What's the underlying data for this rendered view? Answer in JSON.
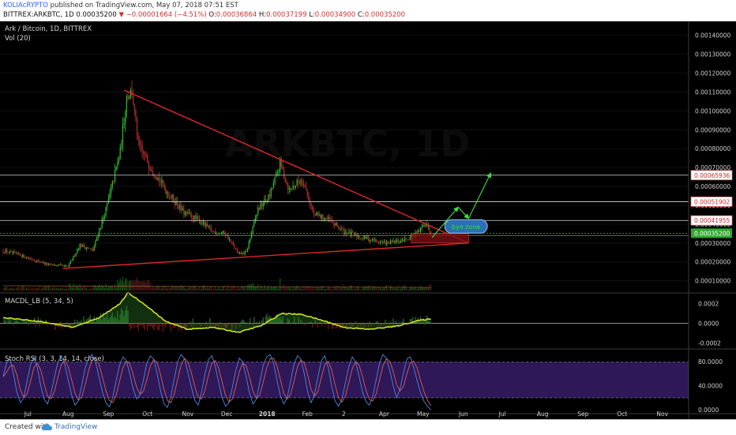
{
  "header": {
    "author": "KOLIAcRYPTO",
    "published": "published on TradingView.com, May 07, 2018 07:51 EST",
    "symbol": "BITTREX:ARKBTC, 1D",
    "price": "0.00035200",
    "change": "−0.00001664 (−4.51%)",
    "ohlc": [
      {
        "label": "O:",
        "value": "0.00036864"
      },
      {
        "label": "H:",
        "value": "0.00037199"
      },
      {
        "label": "L:",
        "value": "0.00034900"
      },
      {
        "label": "C:",
        "value": "0.00035200"
      }
    ]
  },
  "footer": {
    "created_with": "Created with",
    "brand": "TradingView"
  },
  "colors": {
    "background": "#000000",
    "up": "#2fc52f",
    "down": "#b83232",
    "trendline": "#e0262c",
    "level": "#d9d9d9",
    "arrow": "#40e040",
    "macd_line": "#d0e020",
    "rsi_k": "#4f86e0",
    "rsi_d": "#e05a5a",
    "rsi_band": "#3a1e6e"
  },
  "chart_data": [
    {
      "type": "candlestick",
      "title": "Ark / Bitcoin, 1D, BITTREX",
      "indicator_label": "Vol (20)",
      "x_ticks": [
        "Jul",
        "Aug",
        "Sep",
        "Oct",
        "Nov",
        "Dec",
        "2018",
        "Feb",
        "2",
        "Apr",
        "May",
        "Jun",
        "Jul",
        "Aug",
        "Sep",
        "Oct",
        "Nov"
      ],
      "x_range": [
        "2017-06-12",
        "2018-11-20"
      ],
      "y_ticks": [
        "0.00010000",
        "0.00020000",
        "0.00030000",
        "0.00040000",
        "0.00050000",
        "0.00060000",
        "0.00070000",
        "0.00080000",
        "0.00090000",
        "0.00100000",
        "0.00110000",
        "0.00120000",
        "0.00130000",
        "0.00140000"
      ],
      "ylim": [
        4e-05,
        0.00147
      ],
      "keyframes": [
        {
          "date": "2017-06-12",
          "close": 0.00026
        },
        {
          "date": "2017-06-28",
          "close": 0.00023
        },
        {
          "date": "2017-07-17",
          "close": 0.000185
        },
        {
          "date": "2017-08-01",
          "close": 0.000175
        },
        {
          "date": "2017-08-10",
          "close": 0.00029
        },
        {
          "date": "2017-08-20",
          "close": 0.00026
        },
        {
          "date": "2017-08-31",
          "close": 0.0005
        },
        {
          "date": "2017-09-10",
          "close": 0.00078
        },
        {
          "date": "2017-09-15",
          "close": 0.00108
        },
        {
          "date": "2017-09-19",
          "close": 0.0011
        },
        {
          "date": "2017-09-24",
          "close": 0.00082
        },
        {
          "date": "2017-10-02",
          "close": 0.00072
        },
        {
          "date": "2017-10-15",
          "close": 0.00058
        },
        {
          "date": "2017-10-29",
          "close": 0.00046
        },
        {
          "date": "2017-11-10",
          "close": 0.00042
        },
        {
          "date": "2017-11-20",
          "close": 0.00036
        },
        {
          "date": "2017-11-30",
          "close": 0.00035
        },
        {
          "date": "2017-12-10",
          "close": 0.00024
        },
        {
          "date": "2017-12-16",
          "close": 0.00025
        },
        {
          "date": "2017-12-25",
          "close": 0.00048
        },
        {
          "date": "2018-01-03",
          "close": 0.00055
        },
        {
          "date": "2018-01-11",
          "close": 0.00072
        },
        {
          "date": "2018-01-18",
          "close": 0.00058
        },
        {
          "date": "2018-01-28",
          "close": 0.00064
        },
        {
          "date": "2018-02-06",
          "close": 0.00045
        },
        {
          "date": "2018-02-16",
          "close": 0.00043
        },
        {
          "date": "2018-03-01",
          "close": 0.00036
        },
        {
          "date": "2018-03-15",
          "close": 0.00033
        },
        {
          "date": "2018-04-01",
          "close": 0.0003
        },
        {
          "date": "2018-04-15",
          "close": 0.00031
        },
        {
          "date": "2018-04-28",
          "close": 0.00036
        },
        {
          "date": "2018-05-03",
          "close": 0.00041
        },
        {
          "date": "2018-05-07",
          "close": 0.000352
        }
      ],
      "resistance_levels": [
        "0.00065936",
        "0.00051902",
        "0.00041955"
      ],
      "current_price_label": "0.00035200",
      "current_value": 0.000352,
      "support_value": 0.00034,
      "trendlines": [
        {
          "from": {
            "date": "2017-09-13",
            "value": 0.00111
          },
          "to": {
            "date": "2018-06-05",
            "value": 0.0003
          }
        },
        {
          "from": {
            "date": "2017-07-28",
            "value": 0.000165
          },
          "to": {
            "date": "2018-06-05",
            "value": 0.0003
          }
        }
      ],
      "annotation": {
        "text": "bye zone",
        "date": "2018-06-03",
        "value": 0.00039
      },
      "buy_zone": {
        "from": "2018-04-22",
        "to": "2018-06-05",
        "low": 0.0003,
        "high": 0.00035
      },
      "arrows": [
        {
          "from": {
            "date": "2018-05-08",
            "value": 0.00033
          },
          "to": {
            "date": "2018-05-28",
            "value": 0.00049
          }
        },
        {
          "from": {
            "date": "2018-05-28",
            "value": 0.00049
          },
          "to": {
            "date": "2018-06-05",
            "value": 0.00043
          }
        },
        {
          "from": {
            "date": "2018-06-05",
            "value": 0.00043
          },
          "to": {
            "date": "2018-06-22",
            "value": 0.00067
          }
        }
      ]
    },
    {
      "type": "line",
      "title": "MACDL_LB (5, 34, 5)",
      "y_ticks": [
        "0.0002",
        "0.0000",
        "-0.0002"
      ],
      "ylim": [
        -0.00025,
        0.0003
      ],
      "x_range": [
        "2017-06-12",
        "2018-11-20"
      ],
      "keyframes": [
        {
          "date": "2017-06-12",
          "value": 6e-05
        },
        {
          "date": "2017-07-10",
          "value": 2e-05
        },
        {
          "date": "2017-08-05",
          "value": -4e-05
        },
        {
          "date": "2017-08-25",
          "value": 6e-05
        },
        {
          "date": "2017-09-10",
          "value": 0.0002
        },
        {
          "date": "2017-09-16",
          "value": 0.00031
        },
        {
          "date": "2017-09-30",
          "value": 0.00018
        },
        {
          "date": "2017-10-15",
          "value": 2e-05
        },
        {
          "date": "2017-11-01",
          "value": -6e-05
        },
        {
          "date": "2017-11-20",
          "value": -4e-05
        },
        {
          "date": "2017-12-10",
          "value": -9e-05
        },
        {
          "date": "2017-12-28",
          "value": -2e-05
        },
        {
          "date": "2018-01-12",
          "value": 0.0001
        },
        {
          "date": "2018-01-28",
          "value": 9e-05
        },
        {
          "date": "2018-02-15",
          "value": 2e-05
        },
        {
          "date": "2018-03-01",
          "value": -4e-05
        },
        {
          "date": "2018-03-20",
          "value": -6e-05
        },
        {
          "date": "2018-04-10",
          "value": -3e-05
        },
        {
          "date": "2018-04-28",
          "value": 3e-05
        },
        {
          "date": "2018-05-07",
          "value": 4.5e-05
        }
      ]
    },
    {
      "type": "line",
      "title": "Stoch RSI (3, 3, 14, 14, close)",
      "y_ticks": [
        "80.0000",
        "40.0000",
        "0.0000"
      ],
      "ylim": [
        -5,
        100
      ],
      "x_range": [
        "2017-06-12",
        "2018-11-20"
      ],
      "band": [
        20,
        80
      ],
      "k_values": [
        55,
        78,
        85,
        60,
        30,
        12,
        20,
        48,
        75,
        88,
        70,
        40,
        18,
        10,
        28,
        55,
        80,
        90,
        76,
        50,
        25,
        8,
        15,
        42,
        70,
        86,
        92,
        80,
        55,
        30,
        12,
        5,
        20,
        48,
        74,
        88,
        82,
        60,
        35,
        18,
        25,
        50,
        78,
        90,
        84,
        60,
        32,
        10,
        4,
        22,
        52,
        80,
        92,
        85,
        62,
        38,
        16,
        8,
        30,
        60,
        84,
        90,
        72,
        45,
        20,
        6,
        12,
        38,
        66,
        86,
        80,
        55,
        28,
        10,
        18,
        46,
        74,
        88,
        92,
        78,
        50,
        24,
        10,
        20,
        48,
        76,
        90,
        84,
        60,
        30,
        12,
        26,
        55,
        82,
        90,
        70,
        40,
        15,
        6,
        18,
        45,
        72,
        88,
        80,
        56,
        30,
        14,
        8,
        22,
        50,
        78,
        92,
        86,
        65,
        40,
        20,
        35,
        62,
        85,
        88,
        70,
        48,
        28,
        14,
        6,
        0
      ]
    }
  ]
}
